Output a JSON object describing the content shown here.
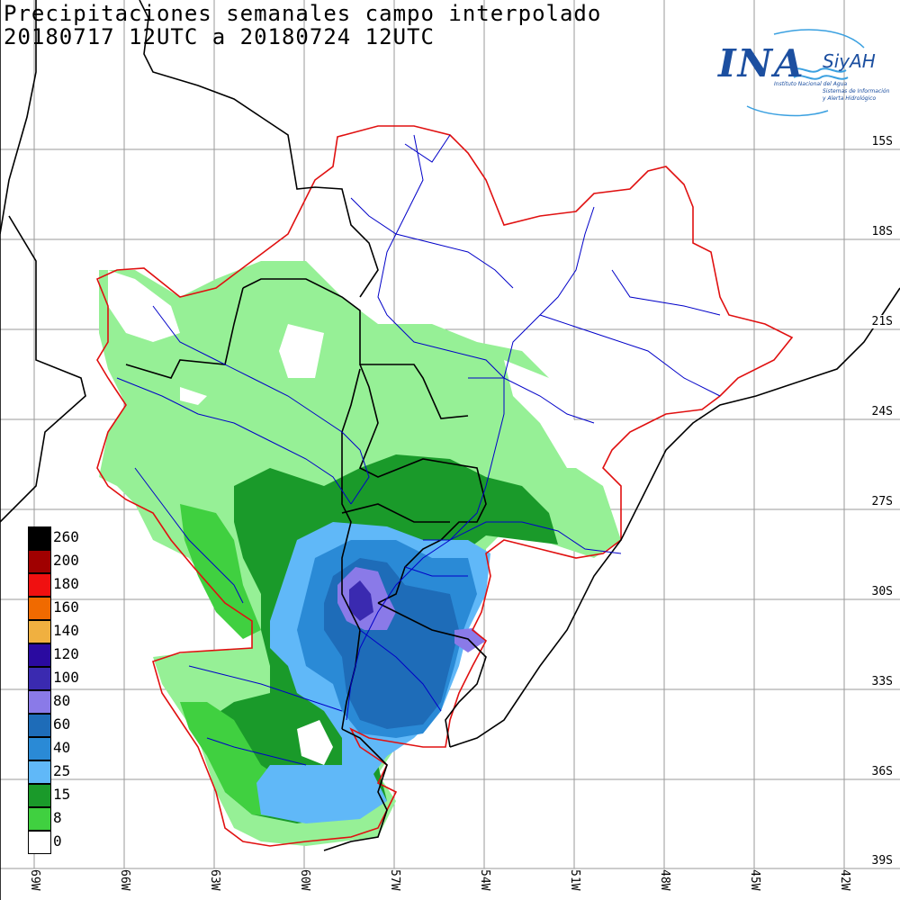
{
  "title": {
    "line1": "Precipitaciones semanales campo interpolado",
    "line2": "20180717 12UTC a 20180724 12UTC"
  },
  "logo": {
    "main": "INA",
    "sub": "SiyAH",
    "org": "Instituto Nacional del Agua",
    "system1": "Sistemas de Información",
    "system2": "y Alerta Hidrológico"
  },
  "lat_labels": [
    "15S",
    "18S",
    "21S",
    "24S",
    "27S",
    "30S",
    "33S",
    "36S",
    "39S"
  ],
  "lon_labels": [
    "69W",
    "66W",
    "63W",
    "60W",
    "57W",
    "54W",
    "51W",
    "48W",
    "45W",
    "42W"
  ],
  "legend": [
    {
      "label": "260",
      "color": "#000000"
    },
    {
      "label": "200",
      "color": "#a00000"
    },
    {
      "label": "180",
      "color": "#f01010"
    },
    {
      "label": "160",
      "color": "#f06a00"
    },
    {
      "label": "140",
      "color": "#f0b040"
    },
    {
      "label": "120",
      "color": "#2a0aa0"
    },
    {
      "label": "100",
      "color": "#3a2ab0"
    },
    {
      "label": "80",
      "color": "#8a7ae8"
    },
    {
      "label": "60",
      "color": "#1e6cb8"
    },
    {
      "label": "40",
      "color": "#2a8ad6"
    },
    {
      "label": "25",
      "color": "#60b8f8"
    },
    {
      "label": "15",
      "color": "#1a9a2a"
    },
    {
      "label": "8",
      "color": "#40d040"
    },
    {
      "label": "0",
      "color": "#ffffff"
    }
  ],
  "colors": {
    "basin_outline": "#e01010",
    "rivers": "#0000c8",
    "borders": "#000000",
    "grid": "#9a9a9a",
    "light_green": "#96f096"
  }
}
